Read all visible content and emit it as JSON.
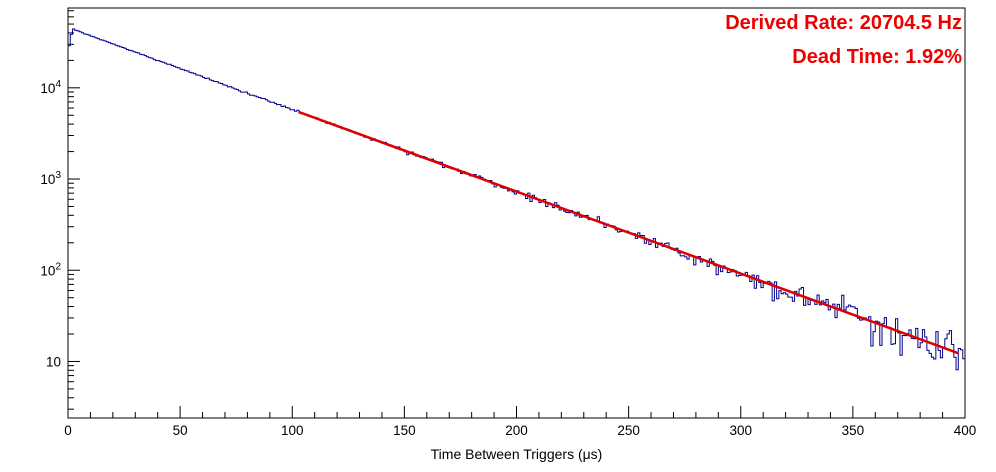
{
  "chart_data": {
    "type": "line",
    "subtype": "histogram-step",
    "title": "",
    "xlabel": "Time Between Triggers (μs)",
    "ylabel": "",
    "xlim": [
      0,
      400
    ],
    "ylim": [
      2.4,
      75000
    ],
    "y_scale": "log",
    "grid": false,
    "legend": "none",
    "x_major_ticks": [
      0,
      50,
      100,
      150,
      200,
      250,
      300,
      350,
      400
    ],
    "x_minor_step": 10,
    "y_major_ticks": [
      {
        "value": 10,
        "base": "10",
        "exp": ""
      },
      {
        "value": 100,
        "base": "10",
        "exp": "2"
      },
      {
        "value": 1000,
        "base": "10",
        "exp": "3"
      },
      {
        "value": 10000,
        "base": "10",
        "exp": "4"
      }
    ],
    "histogram": {
      "bin_width_us": 1,
      "n_bins": 400,
      "initial_bins": [
        29000,
        39000,
        44000
      ],
      "amplitude": 45800,
      "tau_us": 48.3,
      "noise": "poisson",
      "noise_seed": 1234,
      "color": "#00008b"
    },
    "fit": {
      "model": "exponential",
      "range_us": [
        103,
        397
      ],
      "amplitude": 45800,
      "tau_us": 48.3,
      "color": "#dd0000",
      "line_width": 2.5
    },
    "annotations": [
      {
        "text": "Derived Rate: 20704.5 Hz",
        "color": "#ee0000"
      },
      {
        "text": "Dead Time: 1.92%",
        "color": "#ee0000"
      }
    ]
  }
}
